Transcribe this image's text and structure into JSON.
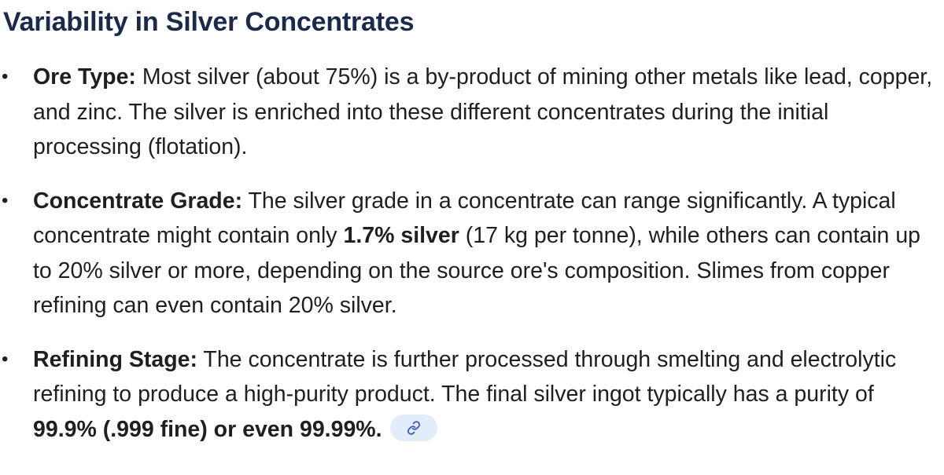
{
  "heading": "Variability in Silver Concentrates",
  "items": [
    {
      "label": "Ore Type:",
      "text": " Most silver (about 75%) is a by-product of mining other metals like lead, copper, and zinc. The silver is enriched into these different concentrates during the initial processing (flotation)."
    },
    {
      "label": "Concentrate Grade:",
      "text_before": " The silver grade in a concentrate can range significantly. A typical concentrate might contain only ",
      "bold": "1.7% silver",
      "text_after": " (17 kg per tonne), while others can contain up to 20% silver or more, depending on the source ore's composition. Slimes from copper refining can even contain 20% silver."
    },
    {
      "label": "Refining Stage:",
      "text_before": " The concentrate is further processed through smelting and electrolytic refining to produce a high-purity product. The final silver ingot typically has a purity of ",
      "bold": "99.9% (.999 fine) or even 99.99%."
    }
  ],
  "bullet_char": "•",
  "link_chip_icon": "link-icon",
  "colors": {
    "heading": "#1b2a4a",
    "body_text": "#1f1f1f",
    "chip_bg": "#e3ecfb",
    "chip_icon": "#3b5bb5"
  }
}
